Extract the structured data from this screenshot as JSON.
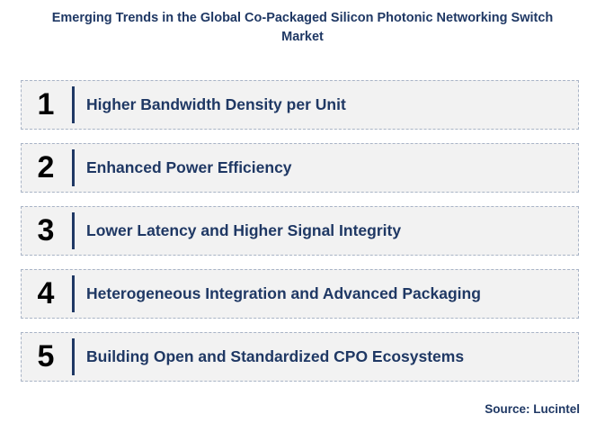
{
  "title": {
    "line1": "Emerging Trends in the Global Co-Packaged Silicon Photonic Networking Switch",
    "line2": "Market"
  },
  "trends": [
    {
      "number": "1",
      "label": "Higher Bandwidth Density per Unit"
    },
    {
      "number": "2",
      "label": "Enhanced Power Efficiency"
    },
    {
      "number": "3",
      "label": "Lower Latency and Higher Signal Integrity"
    },
    {
      "number": "4",
      "label": "Heterogeneous Integration and Advanced Packaging"
    },
    {
      "number": "5",
      "label": "Building Open and Standardized CPO Ecosystems"
    }
  ],
  "source": "Source: Lucintel",
  "colors": {
    "accent": "#1f3864",
    "box_fill": "#f2f2f2",
    "box_border": "#a9b4c6"
  }
}
